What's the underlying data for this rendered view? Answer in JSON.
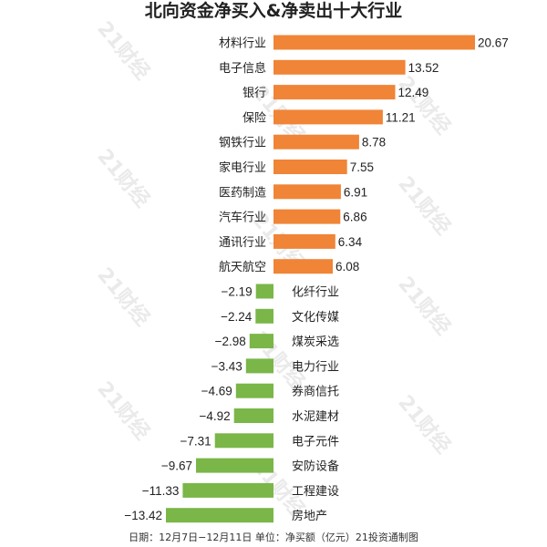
{
  "colors": {
    "positive": "#f08437",
    "negative": "#7ab648",
    "text": "#222222",
    "watermark": "#d9d9d9"
  },
  "watermark_text": "21财经",
  "chart_data": {
    "type": "bar",
    "orientation": "horizontal",
    "title": "北向资金净买入&净卖出十大行业",
    "footer": "日期：12月7日−12月11日 单位：净买额（亿元）21投资通制图",
    "value_unit": "亿元",
    "categories": [
      "材料行业",
      "电子信息",
      "银行",
      "保险",
      "钢铁行业",
      "家电行业",
      "医药制造",
      "汽车行业",
      "通讯行业",
      "航天航空",
      "化纤行业",
      "文化传媒",
      "煤炭采选",
      "电力行业",
      "券商信托",
      "水泥建材",
      "电子元件",
      "安防设备",
      "工程建设",
      "房地产"
    ],
    "values": [
      20.67,
      13.52,
      12.49,
      11.21,
      8.78,
      7.55,
      6.91,
      6.86,
      6.34,
      6.08,
      -2.19,
      -2.24,
      -2.98,
      -3.43,
      -4.69,
      -4.92,
      -7.31,
      -9.67,
      -11.33,
      -13.42
    ],
    "value_labels": [
      "20.67",
      "13.52",
      "12.49",
      "11.21",
      "8.78",
      "7.55",
      "6.91",
      "6.86",
      "6.34",
      "6.08",
      "−2.19",
      "−2.24",
      "−2.98",
      "−3.43",
      "−4.69",
      "−4.92",
      "−7.31",
      "−9.67",
      "−11.33",
      "−13.42"
    ],
    "xlim": [
      -13.42,
      20.67
    ],
    "grid": false,
    "legend": "none"
  }
}
